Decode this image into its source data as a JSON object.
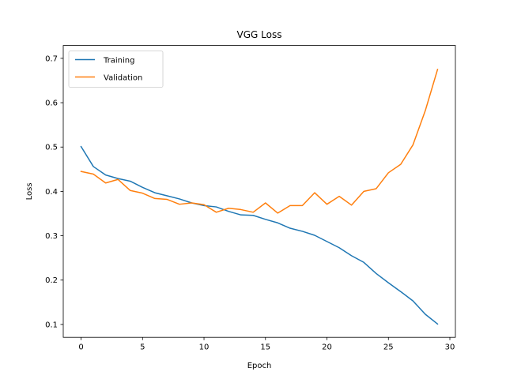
{
  "chart_data": {
    "type": "line",
    "title": "VGG Loss",
    "xlabel": "Epoch",
    "ylabel": "Loss",
    "xlim": [
      -1.45,
      30.45
    ],
    "ylim": [
      0.071,
      0.729
    ],
    "xticks": [
      0,
      5,
      10,
      15,
      20,
      25,
      30
    ],
    "yticks": [
      0.1,
      0.2,
      0.3,
      0.4,
      0.5,
      0.6,
      0.7
    ],
    "grid": false,
    "legend_position": "top-left",
    "x": [
      0,
      1,
      2,
      3,
      4,
      5,
      6,
      7,
      8,
      9,
      10,
      11,
      12,
      13,
      14,
      15,
      16,
      17,
      18,
      19,
      20,
      21,
      22,
      23,
      24,
      25,
      26,
      27,
      28,
      29
    ],
    "series": [
      {
        "name": "Training",
        "color": "#1f77b4",
        "values": [
          0.501,
          0.456,
          0.437,
          0.429,
          0.423,
          0.409,
          0.397,
          0.39,
          0.383,
          0.374,
          0.368,
          0.365,
          0.355,
          0.347,
          0.346,
          0.337,
          0.329,
          0.317,
          0.31,
          0.301,
          0.287,
          0.273,
          0.255,
          0.24,
          0.215,
          0.194,
          0.174,
          0.153,
          0.123,
          0.101
        ]
      },
      {
        "name": "Validation",
        "color": "#ff7f0e",
        "values": [
          0.445,
          0.439,
          0.419,
          0.427,
          0.402,
          0.396,
          0.384,
          0.382,
          0.371,
          0.374,
          0.37,
          0.353,
          0.362,
          0.359,
          0.353,
          0.374,
          0.351,
          0.368,
          0.368,
          0.397,
          0.371,
          0.389,
          0.369,
          0.4,
          0.406,
          0.442,
          0.461,
          0.505,
          0.582,
          0.675
        ]
      }
    ]
  }
}
